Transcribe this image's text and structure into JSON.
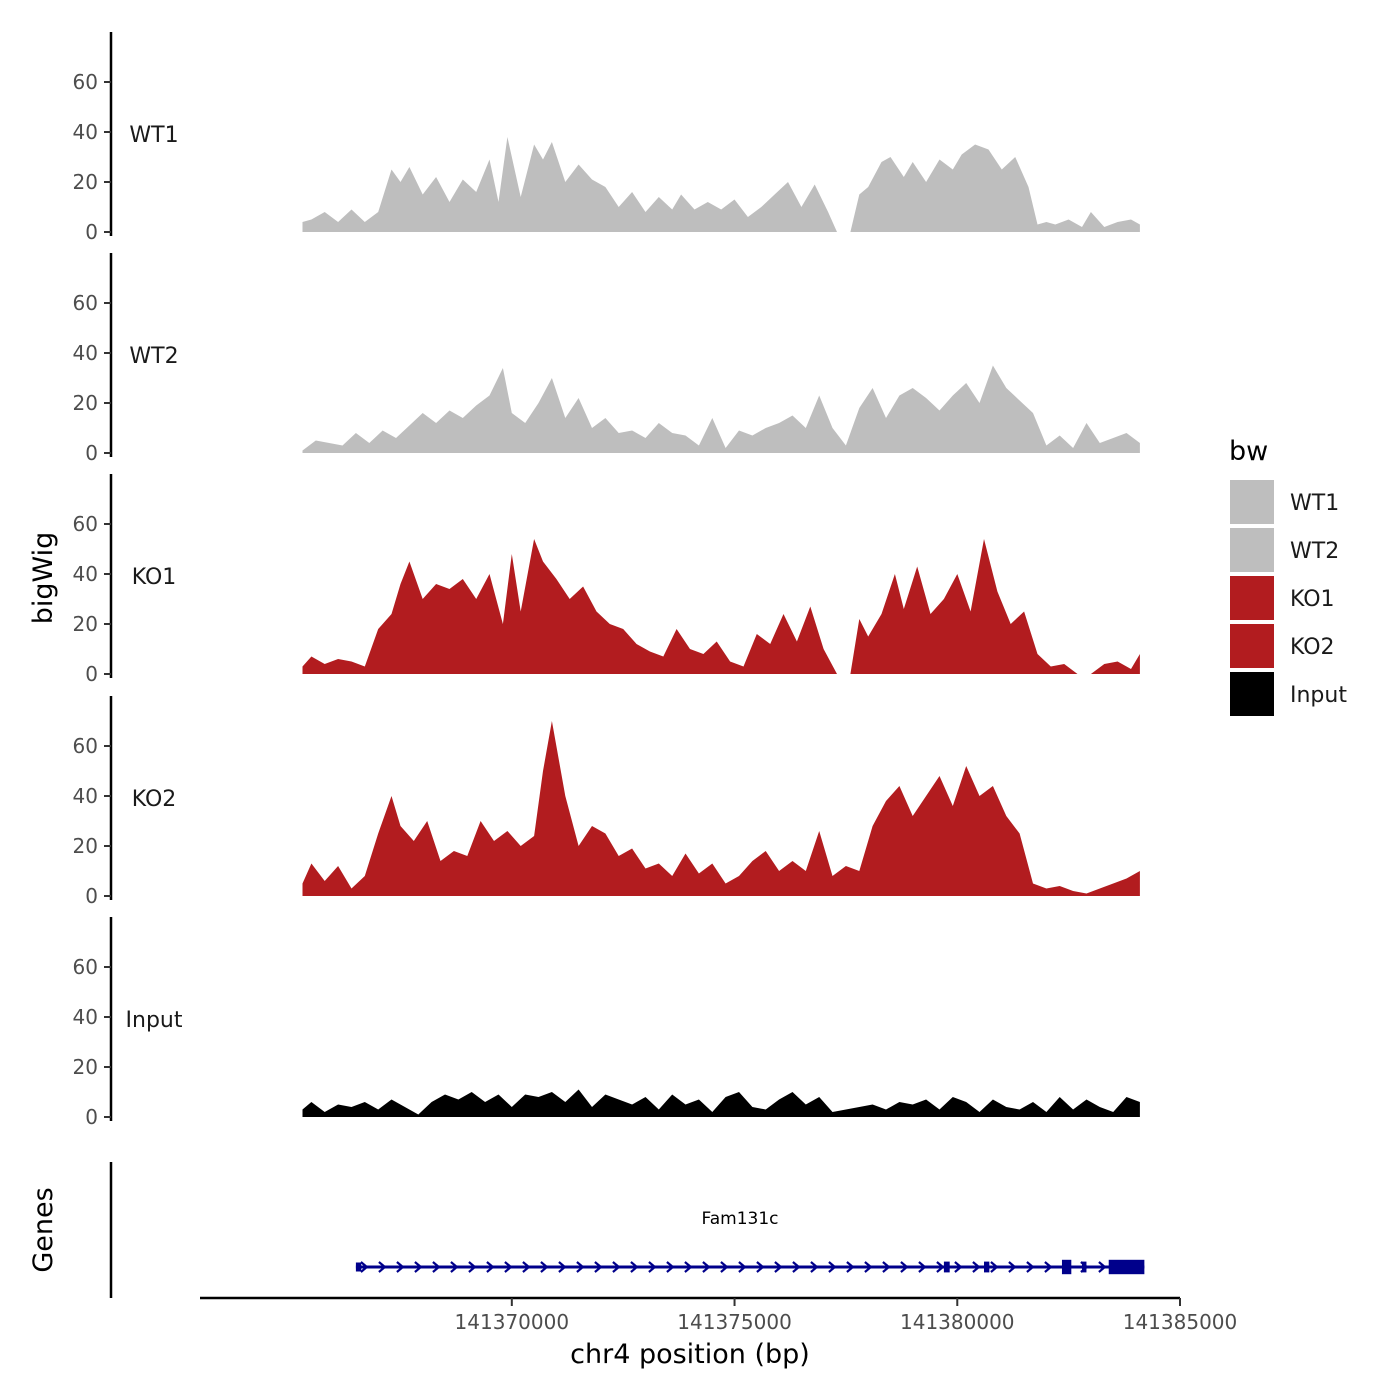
{
  "chart_data": {
    "type": "area",
    "ylabel": "bigWig",
    "genes_label": "Genes",
    "xlabel": "chr4 position (bp)",
    "xlim": [
      141363000,
      141385000
    ],
    "data_xrange": [
      141365300,
      141384100
    ],
    "x_ticks": [
      141370000,
      141375000,
      141380000,
      141385000
    ],
    "x_tick_labels": [
      "141370000",
      "141375000",
      "141380000",
      "141385000"
    ],
    "ylim": [
      0,
      78
    ],
    "y_ticks": [
      0,
      20,
      40,
      60
    ],
    "y_tick_labels": [
      "0",
      "20",
      "40",
      "60"
    ],
    "legend": {
      "title": "bw",
      "entries": [
        {
          "label": "WT1",
          "color": "#bebebe"
        },
        {
          "label": "WT2",
          "color": "#bebebe"
        },
        {
          "label": "KO1",
          "color": "#b21c1f"
        },
        {
          "label": "KO2",
          "color": "#b21c1f"
        },
        {
          "label": "Input",
          "color": "#000000"
        }
      ]
    },
    "series": [
      {
        "name": "WT1",
        "color": "#bebebe",
        "gaps": [
          [
            141377300,
            141377600
          ]
        ],
        "x": [
          141365300,
          141365500,
          141365800,
          141366100,
          141366400,
          141366700,
          141367000,
          141367300,
          141367500,
          141367700,
          141368000,
          141368300,
          141368600,
          141368900,
          141369200,
          141369500,
          141369700,
          141369900,
          141370200,
          141370500,
          141370700,
          141370900,
          141371200,
          141371500,
          141371800,
          141372100,
          141372400,
          141372700,
          141373000,
          141373300,
          141373600,
          141373800,
          141374100,
          141374400,
          141374700,
          141375000,
          141375300,
          141375600,
          141375900,
          141376200,
          141376500,
          141376800,
          141377100,
          141377300,
          141377600,
          141377800,
          141378000,
          141378300,
          141378500,
          141378800,
          141379000,
          141379300,
          141379600,
          141379900,
          141380100,
          141380400,
          141380700,
          141381000,
          141381300,
          141381600,
          141381800,
          141382000,
          141382200,
          141382500,
          141382800,
          141383000,
          141383300,
          141383600,
          141383900,
          141384100
        ],
        "values": [
          4,
          5,
          8,
          4,
          9,
          4,
          8,
          25,
          20,
          26,
          15,
          22,
          12,
          21,
          16,
          29,
          12,
          38,
          14,
          35,
          29,
          36,
          20,
          27,
          21,
          18,
          10,
          16,
          8,
          14,
          9,
          15,
          9,
          12,
          9,
          13,
          6,
          10,
          15,
          20,
          10,
          19,
          8,
          0,
          0,
          15,
          18,
          28,
          30,
          22,
          28,
          20,
          29,
          25,
          31,
          35,
          33,
          25,
          30,
          18,
          3,
          4,
          3,
          5,
          2,
          8,
          2,
          4,
          5,
          3
        ]
      },
      {
        "name": "WT2",
        "color": "#bebebe",
        "gaps": [],
        "x": [
          141365300,
          141365600,
          141365900,
          141366200,
          141366500,
          141366800,
          141367100,
          141367400,
          141367700,
          141368000,
          141368300,
          141368600,
          141368900,
          141369200,
          141369500,
          141369800,
          141370000,
          141370300,
          141370600,
          141370900,
          141371200,
          141371500,
          141371800,
          141372100,
          141372400,
          141372700,
          141373000,
          141373300,
          141373600,
          141373900,
          141374200,
          141374500,
          141374800,
          141375100,
          141375400,
          141375700,
          141376000,
          141376300,
          141376600,
          141376900,
          141377200,
          141377500,
          141377800,
          141378100,
          141378400,
          141378700,
          141379000,
          141379300,
          141379600,
          141379900,
          141380200,
          141380500,
          141380800,
          141381100,
          141381400,
          141381700,
          141382000,
          141382300,
          141382600,
          141382900,
          141383200,
          141383500,
          141383800,
          141384100
        ],
        "values": [
          1,
          5,
          4,
          3,
          8,
          4,
          9,
          6,
          11,
          16,
          12,
          17,
          14,
          19,
          23,
          34,
          16,
          12,
          20,
          30,
          14,
          22,
          10,
          14,
          8,
          9,
          6,
          12,
          8,
          7,
          3,
          14,
          2,
          9,
          7,
          10,
          12,
          15,
          10,
          23,
          10,
          3,
          18,
          26,
          14,
          23,
          26,
          22,
          17,
          23,
          28,
          20,
          35,
          26,
          21,
          16,
          3,
          7,
          2,
          12,
          4,
          6,
          8,
          4
        ]
      },
      {
        "name": "KO1",
        "color": "#b21c1f",
        "gaps": [
          [
            141377300,
            141377600
          ]
        ],
        "x": [
          141365300,
          141365500,
          141365800,
          141366100,
          141366400,
          141366700,
          141367000,
          141367300,
          141367500,
          141367700,
          141368000,
          141368300,
          141368600,
          141368900,
          141369200,
          141369500,
          141369800,
          141370000,
          141370200,
          141370500,
          141370700,
          141371000,
          141371300,
          141371600,
          141371900,
          141372200,
          141372500,
          141372800,
          141373100,
          141373400,
          141373700,
          141374000,
          141374300,
          141374600,
          141374900,
          141375200,
          141375500,
          141375800,
          141376100,
          141376400,
          141376700,
          141377000,
          141377300,
          141377600,
          141377800,
          141378000,
          141378300,
          141378600,
          141378800,
          141379100,
          141379400,
          141379700,
          141380000,
          141380300,
          141380600,
          141380900,
          141381200,
          141381500,
          141381800,
          141382100,
          141382400,
          141382700,
          141383000,
          141383300,
          141383600,
          141383900,
          141384100
        ],
        "values": [
          3,
          7,
          4,
          6,
          5,
          3,
          18,
          24,
          36,
          45,
          30,
          36,
          34,
          38,
          30,
          40,
          20,
          48,
          25,
          54,
          45,
          38,
          30,
          35,
          25,
          20,
          18,
          12,
          9,
          7,
          18,
          10,
          8,
          13,
          5,
          3,
          16,
          12,
          24,
          13,
          27,
          10,
          0,
          0,
          22,
          15,
          24,
          40,
          26,
          43,
          24,
          30,
          40,
          25,
          54,
          33,
          20,
          25,
          8,
          3,
          4,
          0,
          0,
          4,
          5,
          2,
          8
        ]
      },
      {
        "name": "KO2",
        "color": "#b21c1f",
        "gaps": [],
        "x": [
          141365300,
          141365500,
          141365800,
          141366100,
          141366400,
          141366700,
          141367000,
          141367300,
          141367500,
          141367800,
          141368100,
          141368400,
          141368700,
          141369000,
          141369300,
          141369600,
          141369900,
          141370200,
          141370500,
          141370700,
          141370900,
          141371200,
          141371500,
          141371800,
          141372100,
          141372400,
          141372700,
          141373000,
          141373300,
          141373600,
          141373900,
          141374200,
          141374500,
          141374800,
          141375100,
          141375400,
          141375700,
          141376000,
          141376300,
          141376600,
          141376900,
          141377200,
          141377500,
          141377800,
          141378100,
          141378400,
          141378700,
          141379000,
          141379300,
          141379600,
          141379900,
          141380200,
          141380500,
          141380800,
          141381100,
          141381400,
          141381700,
          141382000,
          141382300,
          141382600,
          141382900,
          141383200,
          141383500,
          141383800,
          141384100
        ],
        "values": [
          5,
          13,
          6,
          12,
          3,
          8,
          25,
          40,
          28,
          22,
          30,
          14,
          18,
          16,
          30,
          22,
          26,
          20,
          24,
          50,
          70,
          40,
          20,
          28,
          25,
          16,
          19,
          11,
          13,
          8,
          17,
          9,
          13,
          5,
          8,
          14,
          18,
          10,
          14,
          10,
          26,
          8,
          12,
          10,
          28,
          38,
          44,
          32,
          40,
          48,
          36,
          52,
          40,
          44,
          32,
          25,
          5,
          3,
          4,
          2,
          1,
          3,
          5,
          7,
          10
        ]
      },
      {
        "name": "Input",
        "color": "#000000",
        "gaps": [],
        "x": [
          141365300,
          141365500,
          141365800,
          141366100,
          141366400,
          141366700,
          141367000,
          141367300,
          141367600,
          141367900,
          141368200,
          141368500,
          141368800,
          141369100,
          141369400,
          141369700,
          141370000,
          141370300,
          141370600,
          141370900,
          141371200,
          141371500,
          141371800,
          141372100,
          141372400,
          141372700,
          141373000,
          141373300,
          141373600,
          141373900,
          141374200,
          141374500,
          141374800,
          141375100,
          141375400,
          141375700,
          141376000,
          141376300,
          141376600,
          141376900,
          141377200,
          141377500,
          141377800,
          141378100,
          141378400,
          141378700,
          141379000,
          141379300,
          141379600,
          141379900,
          141380200,
          141380500,
          141380800,
          141381100,
          141381400,
          141381700,
          141382000,
          141382300,
          141382600,
          141382900,
          141383200,
          141383500,
          141383800,
          141384100
        ],
        "values": [
          3,
          6,
          2,
          5,
          4,
          6,
          3,
          7,
          4,
          1,
          6,
          9,
          7,
          10,
          6,
          9,
          4,
          9,
          8,
          10,
          6,
          11,
          4,
          9,
          7,
          5,
          8,
          3,
          9,
          5,
          7,
          2,
          8,
          10,
          4,
          3,
          7,
          10,
          5,
          8,
          2,
          3,
          4,
          5,
          3,
          6,
          5,
          7,
          3,
          8,
          6,
          2,
          7,
          4,
          3,
          6,
          2,
          8,
          3,
          7,
          4,
          2,
          8,
          6
        ]
      }
    ],
    "gene": {
      "name": "Fam131c",
      "start": 141366500,
      "end": 141384200,
      "strand": "+",
      "exons": [
        [
          141366500,
          141366620,
          0.5
        ],
        [
          141379700,
          141379830,
          0.6
        ],
        [
          141380600,
          141380720,
          0.6
        ],
        [
          141382350,
          141382560,
          0.8
        ],
        [
          141382800,
          141382900,
          0.6
        ],
        [
          141383400,
          141384200,
          0.8
        ]
      ]
    }
  }
}
